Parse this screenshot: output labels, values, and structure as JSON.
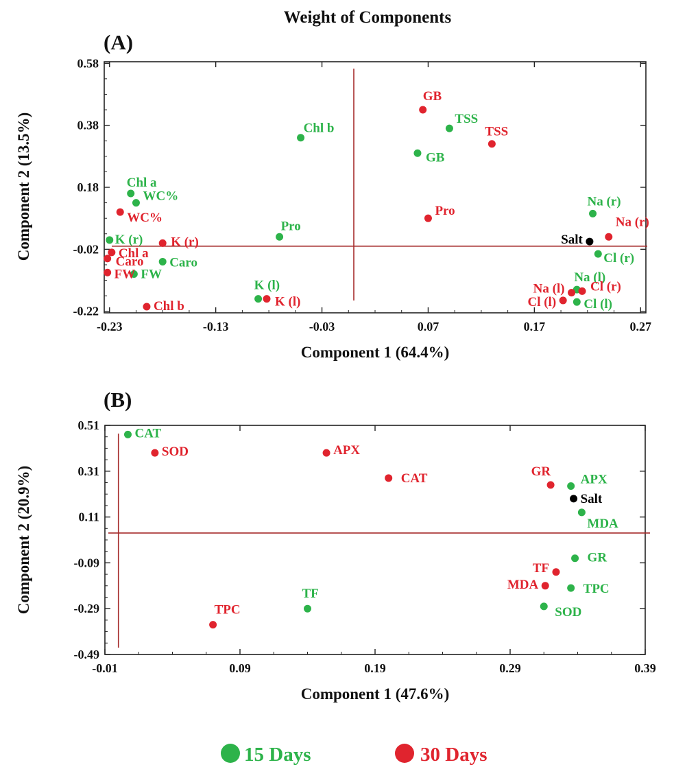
{
  "title": "Weight of Components",
  "colors": {
    "green": "#2db34a",
    "red": "#e0242e",
    "black": "#000000",
    "ref_line": "#a52a2a",
    "axis": "#222222"
  },
  "legend": [
    {
      "label": "15 Days",
      "color": "#2db34a"
    },
    {
      "label": "30 Days",
      "color": "#e0242e"
    }
  ],
  "chart_data": [
    {
      "type": "scatter",
      "panel": "(A)",
      "xlabel": "Component 1 (64.4%)",
      "ylabel": "Component 2 (13.5%)",
      "xlim": [
        -0.235,
        0.275
      ],
      "ylim": [
        -0.225,
        0.585
      ],
      "xticks": [
        "-0.23",
        "-0.13",
        "-0.03",
        "0.07",
        "0.17",
        "0.27"
      ],
      "yticks": [
        "0.58",
        "0.38",
        "0.18",
        "-0.02",
        "-0.22"
      ],
      "grid": false,
      "reference_lines": {
        "x": 0.0,
        "y": -0.01
      },
      "series": [
        {
          "name": "15 Days",
          "color": "#2db34a",
          "points": [
            {
              "label": "Chl b",
              "x": -0.05,
              "y": 0.34
            },
            {
              "label": "TSS",
              "x": 0.09,
              "y": 0.37
            },
            {
              "label": "GB",
              "x": 0.06,
              "y": 0.29
            },
            {
              "label": "Chl a",
              "x": -0.21,
              "y": 0.16
            },
            {
              "label": "WC%",
              "x": -0.205,
              "y": 0.13
            },
            {
              "label": "Pro",
              "x": -0.07,
              "y": 0.02
            },
            {
              "label": "K (r)",
              "x": -0.23,
              "y": 0.01
            },
            {
              "label": "Caro",
              "x": -0.18,
              "y": -0.06
            },
            {
              "label": "FW",
              "x": -0.207,
              "y": -0.1
            },
            {
              "label": "K (l)",
              "x": -0.09,
              "y": -0.18
            },
            {
              "label": "Na (r)",
              "x": 0.225,
              "y": 0.095
            },
            {
              "label": "Cl (r)",
              "x": 0.23,
              "y": -0.035
            },
            {
              "label": "Na (l)",
              "x": 0.21,
              "y": -0.15
            },
            {
              "label": "Cl (l)",
              "x": 0.21,
              "y": -0.19
            }
          ]
        },
        {
          "name": "30 Days",
          "color": "#e0242e",
          "points": [
            {
              "label": "GB",
              "x": 0.065,
              "y": 0.43
            },
            {
              "label": "TSS",
              "x": 0.13,
              "y": 0.32
            },
            {
              "label": "WC%",
              "x": -0.22,
              "y": 0.1
            },
            {
              "label": "Pro",
              "x": 0.07,
              "y": 0.08
            },
            {
              "label": "K (r)",
              "x": -0.18,
              "y": 0.0
            },
            {
              "label": "Chl a",
              "x": -0.228,
              "y": -0.03
            },
            {
              "label": "Caro",
              "x": -0.232,
              "y": -0.05
            },
            {
              "label": "FW",
              "x": -0.232,
              "y": -0.095
            },
            {
              "label": "Chl b",
              "x": -0.195,
              "y": -0.205
            },
            {
              "label": "K (l)",
              "x": -0.082,
              "y": -0.18
            },
            {
              "label": "Na (r)",
              "x": 0.24,
              "y": 0.02
            },
            {
              "label": "Na (l)",
              "x": 0.205,
              "y": -0.16
            },
            {
              "label": "Cl (r)",
              "x": 0.215,
              "y": -0.155
            },
            {
              "label": "Cl (l)",
              "x": 0.197,
              "y": -0.185
            }
          ]
        },
        {
          "name": "Salt",
          "color": "#000000",
          "points": [
            {
              "label": "Salt",
              "x": 0.222,
              "y": 0.005
            }
          ]
        }
      ]
    },
    {
      "type": "scatter",
      "panel": "(B)",
      "xlabel": "Component 1 (47.6%)",
      "ylabel": "Component 2 (20.9%)",
      "xlim": [
        -0.01,
        0.39
      ],
      "ylim": [
        -0.49,
        0.51
      ],
      "xticks": [
        "-0.01",
        "0.09",
        "0.19",
        "0.29",
        "0.39"
      ],
      "yticks": [
        "0.51",
        "0.31",
        "0.11",
        "-0.09",
        "-0.29",
        "-0.49"
      ],
      "grid": false,
      "reference_lines": {
        "x": 0.0,
        "y": 0.04
      },
      "series": [
        {
          "name": "15 Days",
          "color": "#2db34a",
          "points": [
            {
              "label": "CAT",
              "x": 0.007,
              "y": 0.47
            },
            {
              "label": "APX",
              "x": 0.335,
              "y": 0.245
            },
            {
              "label": "MDA",
              "x": 0.343,
              "y": 0.13
            },
            {
              "label": "GR",
              "x": 0.338,
              "y": -0.07
            },
            {
              "label": "TPC",
              "x": 0.335,
              "y": -0.2
            },
            {
              "label": "SOD",
              "x": 0.315,
              "y": -0.28
            },
            {
              "label": "TF",
              "x": 0.14,
              "y": -0.29
            }
          ]
        },
        {
          "name": "30 Days",
          "color": "#e0242e",
          "points": [
            {
              "label": "SOD",
              "x": 0.027,
              "y": 0.39
            },
            {
              "label": "APX",
              "x": 0.154,
              "y": 0.39
            },
            {
              "label": "CAT",
              "x": 0.2,
              "y": 0.28
            },
            {
              "label": "GR",
              "x": 0.32,
              "y": 0.25
            },
            {
              "label": "TF",
              "x": 0.324,
              "y": -0.13
            },
            {
              "label": "MDA",
              "x": 0.316,
              "y": -0.19
            },
            {
              "label": "TPC",
              "x": 0.07,
              "y": -0.36
            }
          ]
        },
        {
          "name": "Salt",
          "color": "#000000",
          "points": [
            {
              "label": "Salt",
              "x": 0.337,
              "y": 0.19
            }
          ]
        }
      ]
    }
  ]
}
